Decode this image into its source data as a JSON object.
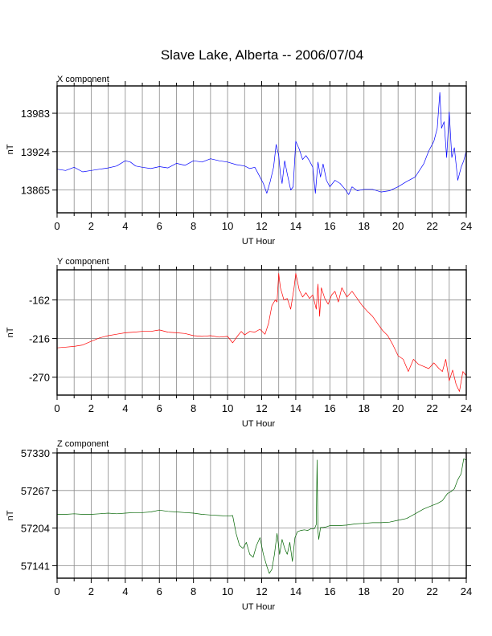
{
  "title": "Slave Lake, Alberta -- 2006/07/04",
  "chart_data": [
    {
      "type": "line",
      "title": "X component",
      "xlabel": "UT Hour",
      "ylabel": "nT",
      "color": "#0000ff",
      "xlim": [
        0,
        24
      ],
      "ylim": [
        13830,
        14025
      ],
      "xticks": [
        0,
        2,
        4,
        6,
        8,
        10,
        12,
        14,
        16,
        18,
        20,
        22,
        24
      ],
      "yticks": [
        13865,
        13924,
        13983
      ],
      "series": [
        {
          "x": [
            0,
            0.5,
            1,
            1.5,
            2,
            2.5,
            3,
            3.5,
            4,
            4.3,
            4.6,
            5,
            5.5,
            6,
            6.5,
            7,
            7.5,
            8,
            8.5,
            9,
            9.5,
            10,
            10.5,
            11,
            11.3,
            11.6,
            11.9,
            12.1,
            12.3,
            12.5,
            12.7,
            12.85,
            13,
            13.1,
            13.2,
            13.35,
            13.5,
            13.7,
            13.85,
            14,
            14.2,
            14.4,
            14.6,
            14.8,
            15,
            15.15,
            15.3,
            15.45,
            15.6,
            15.8,
            16,
            16.3,
            16.6,
            16.9,
            17.1,
            17.3,
            17.6,
            18,
            18.5,
            19,
            19.5,
            20,
            20.5,
            21,
            21.5,
            21.8,
            22.1,
            22.3,
            22.45,
            22.55,
            22.7,
            22.85,
            23,
            23.15,
            23.3,
            23.5,
            23.7,
            23.85,
            24
          ],
          "y": [
            13897,
            13895,
            13900,
            13893,
            13895,
            13897,
            13899,
            13902,
            13910,
            13908,
            13902,
            13900,
            13898,
            13901,
            13899,
            13906,
            13903,
            13910,
            13908,
            13913,
            13910,
            13908,
            13904,
            13902,
            13898,
            13900,
            13885,
            13875,
            13860,
            13878,
            13900,
            13935,
            13918,
            13890,
            13875,
            13910,
            13890,
            13865,
            13870,
            13940,
            13928,
            13912,
            13918,
            13910,
            13900,
            13860,
            13908,
            13885,
            13905,
            13880,
            13870,
            13880,
            13875,
            13866,
            13858,
            13870,
            13864,
            13866,
            13866,
            13862,
            13864,
            13870,
            13878,
            13885,
            13905,
            13925,
            13940,
            13960,
            14015,
            13960,
            13970,
            13915,
            13985,
            13915,
            13930,
            13880,
            13900,
            13910,
            13925
          ]
        }
      ]
    },
    {
      "type": "line",
      "title": "Y component",
      "xlabel": "UT Hour",
      "ylabel": "nT",
      "color": "#ff0000",
      "xlim": [
        0,
        24
      ],
      "ylim": [
        -295,
        -120
      ],
      "xticks": [
        0,
        2,
        4,
        6,
        8,
        10,
        12,
        14,
        16,
        18,
        20,
        22,
        24
      ],
      "yticks": [
        -270,
        -216,
        -162
      ],
      "series": [
        {
          "x": [
            0,
            0.5,
            1,
            1.5,
            2,
            2.5,
            3,
            3.5,
            4,
            4.5,
            5,
            5.5,
            6,
            6.5,
            7,
            7.5,
            8,
            8.5,
            9,
            9.5,
            10,
            10.3,
            10.6,
            10.8,
            11,
            11.3,
            11.6,
            11.9,
            12.2,
            12.4,
            12.6,
            12.8,
            12.9,
            13,
            13.1,
            13.3,
            13.5,
            13.7,
            13.9,
            14,
            14.2,
            14.4,
            14.6,
            14.8,
            15,
            15.2,
            15.3,
            15.4,
            15.5,
            15.7,
            15.9,
            16.1,
            16.3,
            16.5,
            16.7,
            17,
            17.3,
            17.6,
            17.9,
            18.2,
            18.5,
            18.8,
            19.1,
            19.4,
            19.7,
            20,
            20.3,
            20.6,
            20.9,
            21.2,
            21.5,
            21.8,
            22.1,
            22.4,
            22.6,
            22.8,
            23,
            23.2,
            23.4,
            23.6,
            23.8,
            24
          ],
          "y": [
            -229,
            -228,
            -227,
            -225,
            -220,
            -215,
            -212,
            -210,
            -208,
            -207,
            -206,
            -206,
            -204,
            -207,
            -208,
            -209,
            -212,
            -213,
            -212,
            -214,
            -213,
            -222,
            -212,
            -206,
            -211,
            -206,
            -207,
            -203,
            -210,
            -195,
            -170,
            -162,
            -165,
            -125,
            -145,
            -162,
            -160,
            -175,
            -145,
            -125,
            -148,
            -158,
            -152,
            -160,
            -155,
            -175,
            -140,
            -185,
            -145,
            -160,
            -168,
            -155,
            -150,
            -165,
            -145,
            -158,
            -150,
            -160,
            -170,
            -178,
            -185,
            -195,
            -205,
            -212,
            -225,
            -240,
            -245,
            -262,
            -245,
            -252,
            -255,
            -258,
            -250,
            -258,
            -262,
            -245,
            -275,
            -260,
            -280,
            -290,
            -262,
            -268
          ]
        }
      ]
    },
    {
      "type": "line",
      "title": "Z component",
      "xlabel": "UT Hour",
      "ylabel": "nT",
      "color": "#006400",
      "xlim": [
        0,
        24
      ],
      "ylim": [
        57120,
        57330
      ],
      "xticks": [
        0,
        2,
        4,
        6,
        8,
        10,
        12,
        14,
        16,
        18,
        20,
        22,
        24
      ],
      "yticks": [
        57141,
        57204,
        57267,
        57330
      ],
      "series": [
        {
          "x": [
            0,
            0.5,
            1,
            1.5,
            2,
            2.5,
            3,
            3.5,
            4,
            4.5,
            5,
            5.5,
            6,
            6.5,
            7,
            7.5,
            8,
            8.5,
            9,
            9.5,
            10,
            10.3,
            10.5,
            10.7,
            10.9,
            11.1,
            11.3,
            11.5,
            11.7,
            11.9,
            12.1,
            12.3,
            12.45,
            12.6,
            12.75,
            12.9,
            13.05,
            13.2,
            13.35,
            13.5,
            13.65,
            13.8,
            13.95,
            14.1,
            14.3,
            14.5,
            14.7,
            14.9,
            15.1,
            15.2,
            15.25,
            15.3,
            15.35,
            15.45,
            15.6,
            15.8,
            16,
            16.5,
            17,
            17.5,
            18,
            18.5,
            19,
            19.5,
            20,
            20.5,
            21,
            21.5,
            22,
            22.3,
            22.6,
            22.9,
            23.1,
            23.3,
            23.5,
            23.7,
            23.85,
            24
          ],
          "y": [
            57227,
            57227,
            57228,
            57227,
            57227,
            57228,
            57229,
            57228,
            57229,
            57230,
            57230,
            57231,
            57234,
            57232,
            57231,
            57230,
            57229,
            57227,
            57226,
            57225,
            57224,
            57225,
            57195,
            57175,
            57170,
            57180,
            57160,
            57155,
            57175,
            57188,
            57160,
            57140,
            57128,
            57135,
            57160,
            57195,
            57160,
            57185,
            57170,
            57160,
            57180,
            57148,
            57188,
            57198,
            57200,
            57201,
            57200,
            57203,
            57203,
            57210,
            57318,
            57200,
            57185,
            57205,
            57205,
            57206,
            57208,
            57208,
            57209,
            57211,
            57212,
            57213,
            57213,
            57214,
            57217,
            57220,
            57228,
            57236,
            57242,
            57245,
            57250,
            57262,
            57265,
            57270,
            57285,
            57295,
            57320,
            57318
          ]
        }
      ]
    }
  ]
}
